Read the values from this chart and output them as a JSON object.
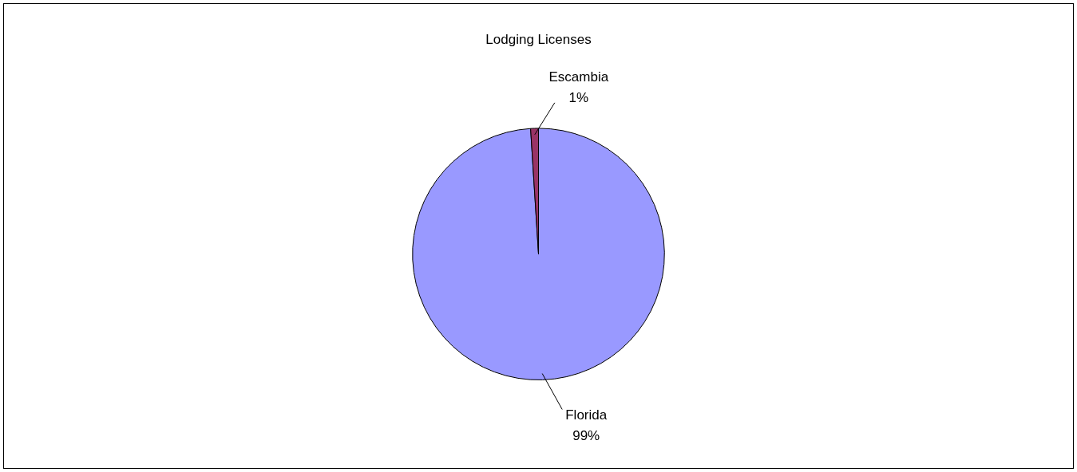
{
  "chart_data": {
    "type": "pie",
    "title": "Lodging Licenses",
    "categories": [
      "Florida",
      "Escambia"
    ],
    "values": [
      99,
      1
    ],
    "value_labels": [
      "99%",
      "1%"
    ],
    "colors": [
      "#9999ff",
      "#993366"
    ],
    "legend": false
  }
}
